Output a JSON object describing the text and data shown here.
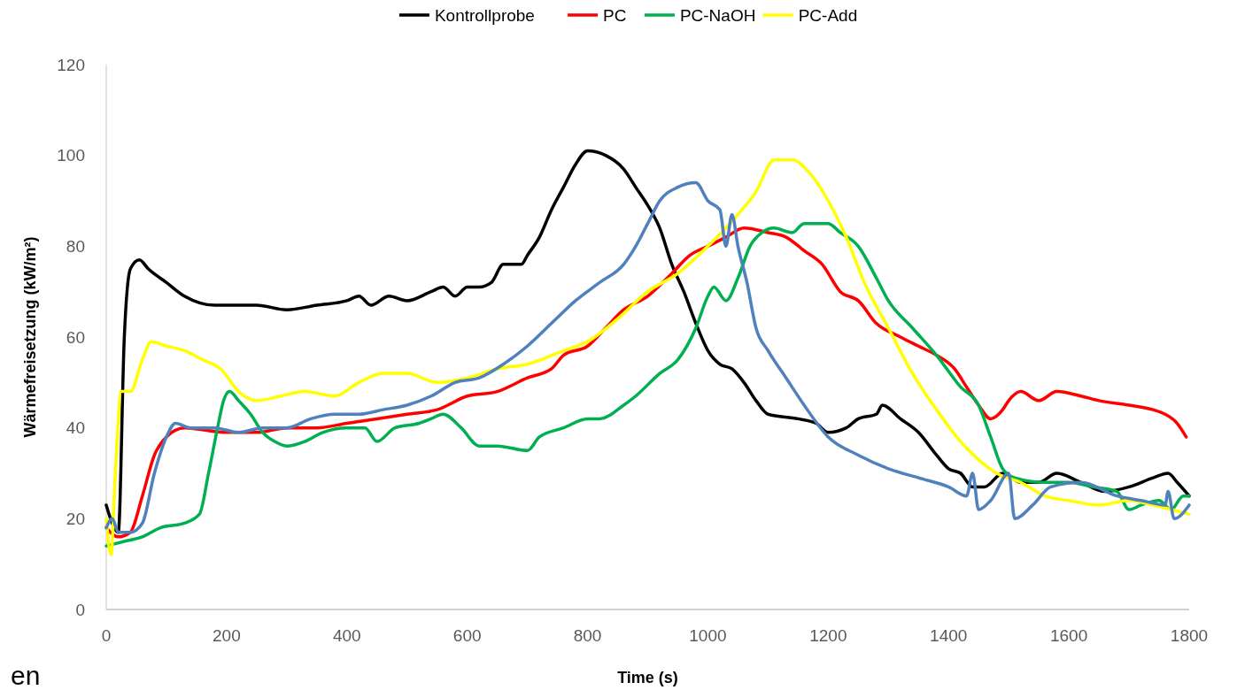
{
  "chart_data": {
    "type": "line",
    "xlabel": "Time (s)",
    "ylabel": "Wärmefreisetzung (kW/m²)",
    "xlim": [
      0,
      1800
    ],
    "xticks": [
      0,
      200,
      400,
      600,
      800,
      1000,
      1200,
      1400,
      1600,
      1800
    ],
    "ylim": [
      0,
      120
    ],
    "yticks": [
      0,
      20,
      40,
      60,
      80,
      100,
      120
    ],
    "grid": false,
    "legend": "top",
    "marker": "none",
    "line_style": "solid",
    "annotations": [
      "en"
    ],
    "series": [
      {
        "name": "Kontrollprobe",
        "color": "#000000",
        "x": [
          0,
          10,
          20,
          30,
          40,
          55,
          70,
          100,
          130,
          180,
          220,
          250,
          300,
          350,
          400,
          420,
          440,
          470,
          500,
          540,
          560,
          580,
          600,
          620,
          640,
          660,
          690,
          700,
          720,
          740,
          760,
          780,
          800,
          830,
          860,
          880,
          900,
          920,
          940,
          960,
          980,
          1000,
          1020,
          1040,
          1060,
          1080,
          1100,
          1150,
          1180,
          1200,
          1230,
          1250,
          1280,
          1290,
          1320,
          1350,
          1380,
          1400,
          1420,
          1440,
          1460,
          1490,
          1520,
          1550,
          1580,
          1620,
          1660,
          1700,
          1740,
          1765,
          1780,
          1800
        ],
        "values": [
          23,
          19,
          17,
          60,
          75,
          77,
          75,
          72,
          69,
          67,
          67,
          67,
          66,
          67,
          68,
          69,
          67,
          69,
          68,
          70,
          71,
          69,
          71,
          71,
          72,
          76,
          76,
          78,
          82,
          88,
          93,
          98,
          101,
          100,
          97,
          93,
          89,
          84,
          76,
          70,
          63,
          57,
          54,
          53,
          50,
          46,
          43,
          42,
          41,
          39,
          40,
          42,
          43,
          45,
          42,
          39,
          34,
          31,
          30,
          27,
          27,
          30,
          28,
          28,
          30,
          28,
          26,
          27,
          29,
          30,
          28,
          25
        ]
      },
      {
        "name": "PC",
        "color": "#ff0000",
        "x": [
          0,
          20,
          40,
          60,
          80,
          100,
          130,
          200,
          250,
          300,
          350,
          400,
          450,
          500,
          550,
          600,
          650,
          700,
          740,
          760,
          800,
          830,
          860,
          900,
          940,
          970,
          1000,
          1030,
          1060,
          1100,
          1130,
          1160,
          1190,
          1220,
          1250,
          1280,
          1320,
          1350,
          1380,
          1410,
          1430,
          1450,
          1470,
          1490,
          1500,
          1520,
          1550,
          1580,
          1620,
          1650,
          1700,
          1740,
          1760,
          1780,
          1795
        ],
        "values": [
          18,
          16,
          17,
          25,
          34,
          38,
          40,
          39,
          39,
          40,
          40,
          41,
          42,
          43,
          44,
          47,
          48,
          51,
          53,
          56,
          58,
          62,
          66,
          69,
          74,
          78,
          80,
          82,
          84,
          83,
          82,
          79,
          76,
          70,
          68,
          63,
          60,
          58,
          56,
          53,
          49,
          45,
          42,
          44,
          46,
          48,
          46,
          48,
          47,
          46,
          45,
          44,
          43,
          41,
          38
        ]
      },
      {
        "name": "PC-NaOH",
        "color": "#00b050",
        "x": [
          0,
          30,
          60,
          90,
          130,
          155,
          170,
          185,
          195,
          205,
          220,
          240,
          260,
          280,
          300,
          330,
          360,
          400,
          430,
          450,
          480,
          520,
          540,
          560,
          590,
          620,
          650,
          700,
          720,
          760,
          800,
          820,
          860,
          880,
          920,
          950,
          980,
          1000,
          1010,
          1030,
          1050,
          1070,
          1090,
          1110,
          1140,
          1160,
          1200,
          1220,
          1250,
          1280,
          1300,
          1340,
          1380,
          1420,
          1450,
          1470,
          1490,
          1510,
          1560,
          1600,
          1640,
          1680,
          1700,
          1720,
          1750,
          1770,
          1790,
          1800
        ],
        "values": [
          14,
          15,
          16,
          18,
          19,
          21,
          30,
          40,
          46,
          48,
          46,
          43,
          39,
          37,
          36,
          37,
          39,
          40,
          40,
          37,
          40,
          41,
          42,
          43,
          40,
          36,
          36,
          35,
          38,
          40,
          42,
          42,
          45,
          47,
          52,
          55,
          62,
          69,
          71,
          68,
          73,
          80,
          83,
          84,
          83,
          85,
          85,
          83,
          80,
          73,
          68,
          62,
          56,
          49,
          45,
          38,
          31,
          29,
          28,
          28,
          27,
          26,
          22,
          23,
          24,
          22,
          25,
          25
        ]
      },
      {
        "name": "PC-Add",
        "color": "#ffff00",
        "x": [
          0,
          8,
          15,
          25,
          40,
          60,
          75,
          100,
          130,
          160,
          190,
          220,
          250,
          290,
          330,
          380,
          420,
          460,
          500,
          550,
          600,
          650,
          700,
          760,
          800,
          850,
          900,
          950,
          1000,
          1050,
          1080,
          1110,
          1140,
          1170,
          1200,
          1230,
          1260,
          1300,
          1340,
          1380,
          1420,
          1450,
          1480,
          1520,
          1560,
          1600,
          1650,
          1700,
          1740,
          1770,
          1800
        ],
        "values": [
          20,
          12,
          30,
          48,
          48,
          55,
          59,
          58,
          57,
          55,
          53,
          48,
          46,
          47,
          48,
          47,
          50,
          52,
          52,
          50,
          51,
          53,
          54,
          57,
          59,
          64,
          70,
          74,
          80,
          87,
          92,
          99,
          99,
          96,
          90,
          82,
          72,
          62,
          52,
          44,
          37,
          33,
          30,
          28,
          25,
          24,
          23,
          24,
          23,
          22,
          21
        ]
      },
      {
        "color": "#4f81bd",
        "x": [
          0,
          10,
          20,
          40,
          60,
          80,
          100,
          115,
          140,
          180,
          220,
          260,
          300,
          340,
          380,
          420,
          460,
          500,
          540,
          580,
          620,
          660,
          700,
          740,
          780,
          820,
          860,
          880,
          900,
          920,
          950,
          980,
          1000,
          1020,
          1030,
          1040,
          1050,
          1065,
          1080,
          1100,
          1130,
          1160,
          1200,
          1250,
          1300,
          1350,
          1400,
          1430,
          1440,
          1450,
          1470,
          1500,
          1510,
          1540,
          1570,
          1620,
          1680,
          1720,
          1760,
          1765,
          1775,
          1800
        ],
        "values": [
          18,
          20,
          17,
          17,
          19,
          30,
          38,
          41,
          40,
          40,
          39,
          40,
          40,
          42,
          43,
          43,
          44,
          45,
          47,
          50,
          51,
          54,
          58,
          63,
          68,
          72,
          76,
          80,
          85,
          90,
          93,
          94,
          90,
          88,
          80,
          87,
          80,
          72,
          62,
          57,
          51,
          45,
          38,
          34,
          31,
          29,
          27,
          25,
          30,
          22,
          24,
          30,
          20,
          23,
          27,
          28,
          25,
          24,
          23,
          26,
          20,
          23
        ]
      }
    ]
  }
}
